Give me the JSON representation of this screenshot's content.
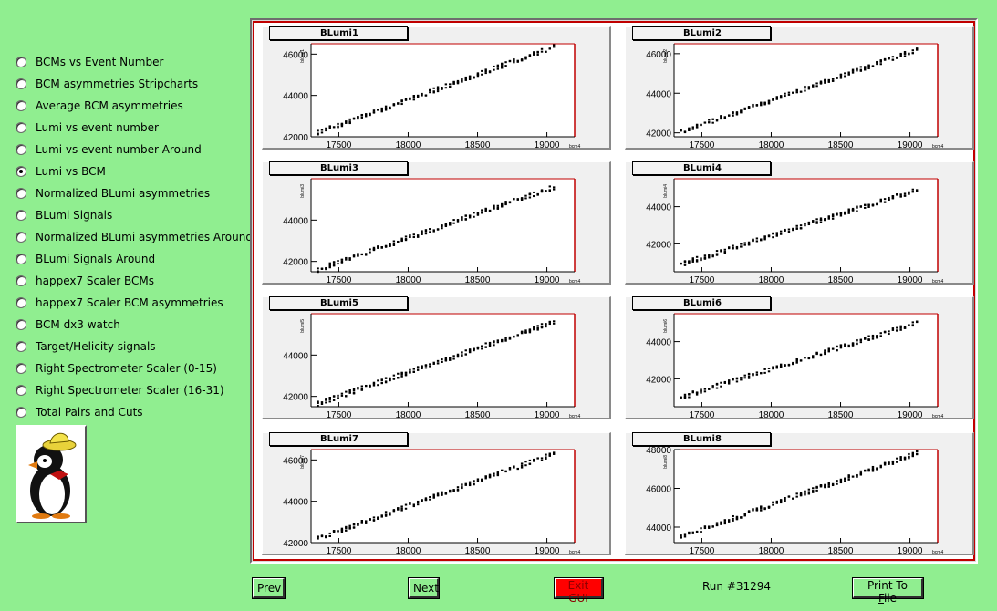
{
  "menu": {
    "selected": 5,
    "items": [
      "BCMs vs Event Number",
      "BCM asymmetries Stripcharts",
      "Average BCM asymmetries",
      "Lumi vs event number",
      "Lumi vs event number Around",
      "Lumi vs BCM",
      "Normalized BLumi asymmetries",
      "BLumi Signals",
      "Normalized BLumi asymmetries Around",
      "BLumi Signals Around",
      "happex7 Scaler BCMs",
      "happex7 Scaler BCM asymmetries",
      "BCM dx3 watch",
      "Target/Helicity signals",
      "Right Spectrometer Scaler (0-15)",
      "Right Spectrometer Scaler (16-31)",
      "Total Pairs and Cuts"
    ]
  },
  "footer": {
    "prev_label": "Prev",
    "next_label": "Next",
    "exit_label": "Exit GUI",
    "run_label": "Run #31294",
    "print_label_pre": "Print To ",
    "print_label_ul": "F",
    "print_label_post": "ile"
  },
  "colors": {
    "background": "#90ee90",
    "frame": "#c00000",
    "exit": "#ff0000"
  },
  "chart_data": [
    {
      "type": "scatter",
      "title": "BLumi1",
      "xlabel": "bcm4",
      "ylabel": "blumi1",
      "xlim": [
        17300,
        19200
      ],
      "ylim": [
        42000,
        46500
      ],
      "xticks": [
        17500,
        18000,
        18500,
        19000
      ],
      "yticks": [
        42000,
        44000,
        46000
      ],
      "line": [
        [
          17350,
          42200
        ],
        [
          19050,
          46350
        ]
      ]
    },
    {
      "type": "scatter",
      "title": "BLumi2",
      "xlabel": "bcm4",
      "ylabel": "blumi2",
      "xlim": [
        17300,
        19200
      ],
      "ylim": [
        41800,
        46500
      ],
      "xticks": [
        17500,
        18000,
        18500,
        19000
      ],
      "yticks": [
        42000,
        44000,
        46000
      ],
      "line": [
        [
          17350,
          42050
        ],
        [
          19050,
          46200
        ]
      ]
    },
    {
      "type": "scatter",
      "title": "BLumi3",
      "xlabel": "bcm4",
      "ylabel": "blumi3",
      "xlim": [
        17300,
        19200
      ],
      "ylim": [
        41500,
        46000
      ],
      "xticks": [
        17500,
        18000,
        18500,
        19000
      ],
      "yticks": [
        42000,
        44000
      ],
      "line": [
        [
          17350,
          41600
        ],
        [
          19050,
          45600
        ]
      ]
    },
    {
      "type": "scatter",
      "title": "BLumi4",
      "xlabel": "bcm4",
      "ylabel": "blumi4",
      "xlim": [
        17300,
        19200
      ],
      "ylim": [
        40500,
        45500
      ],
      "xticks": [
        17500,
        18000,
        18500,
        19000
      ],
      "yticks": [
        42000,
        44000
      ],
      "line": [
        [
          17350,
          40900
        ],
        [
          19050,
          44900
        ]
      ]
    },
    {
      "type": "scatter",
      "title": "BLumi5",
      "xlabel": "bcm4",
      "ylabel": "blumi5",
      "xlim": [
        17300,
        19200
      ],
      "ylim": [
        41500,
        46000
      ],
      "xticks": [
        17500,
        18000,
        18500,
        19000
      ],
      "yticks": [
        42000,
        44000
      ],
      "line": [
        [
          17350,
          41650
        ],
        [
          19050,
          45600
        ]
      ]
    },
    {
      "type": "scatter",
      "title": "BLumi6",
      "xlabel": "bcm4",
      "ylabel": "blumi6",
      "xlim": [
        17300,
        19200
      ],
      "ylim": [
        40500,
        45500
      ],
      "xticks": [
        17500,
        18000,
        18500,
        19000
      ],
      "yticks": [
        42000,
        44000
      ],
      "line": [
        [
          17350,
          41000
        ],
        [
          19050,
          45000
        ]
      ]
    },
    {
      "type": "scatter",
      "title": "BLumi7",
      "xlabel": "bcm4",
      "ylabel": "blumi7",
      "xlim": [
        17300,
        19200
      ],
      "ylim": [
        42000,
        46500
      ],
      "xticks": [
        17500,
        18000,
        18500,
        19000
      ],
      "yticks": [
        42000,
        44000,
        46000
      ],
      "line": [
        [
          17350,
          42200
        ],
        [
          19050,
          46300
        ]
      ]
    },
    {
      "type": "scatter",
      "title": "BLumi8",
      "xlabel": "bcm4",
      "ylabel": "blumi8",
      "xlim": [
        17300,
        19200
      ],
      "ylim": [
        43200,
        48000
      ],
      "xticks": [
        17500,
        18000,
        18500,
        19000
      ],
      "yticks": [
        44000,
        46000,
        48000
      ],
      "line": [
        [
          17350,
          43500
        ],
        [
          19050,
          47800
        ]
      ]
    }
  ]
}
